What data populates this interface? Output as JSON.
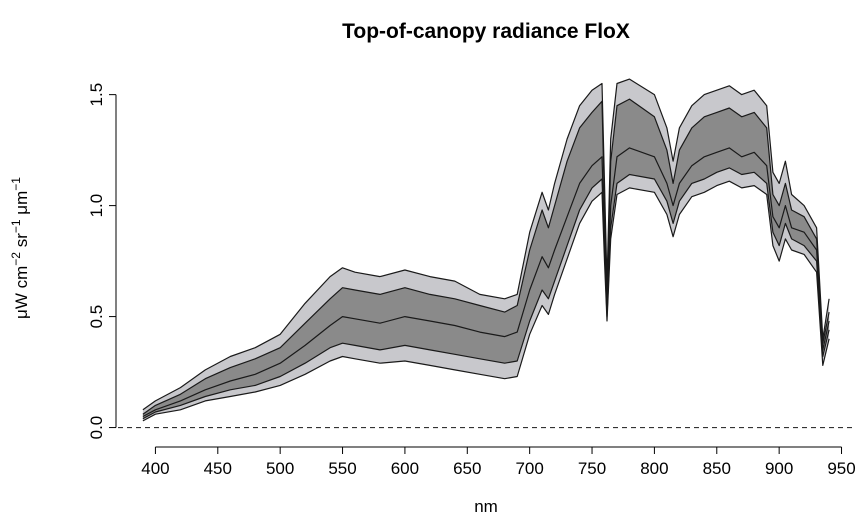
{
  "chart_data": {
    "type": "area",
    "title": "Top-of-canopy radiance FloX",
    "xlabel": "nm",
    "ylabel": {
      "text": "μW cm",
      "exp1": "−2",
      "mid": " sr",
      "exp2": "−1",
      "mid2": " μm",
      "exp3": "−1"
    },
    "xlim": [
      370,
      960
    ],
    "ylim": [
      -0.02,
      1.62
    ],
    "x_ticks": [
      400,
      450,
      500,
      550,
      600,
      650,
      700,
      750,
      800,
      850,
      900,
      950
    ],
    "y_ticks": [
      0.0,
      0.5,
      1.0,
      1.5
    ],
    "y_tick_labels": [
      "0.0",
      "0.5",
      "1.0",
      "1.5"
    ],
    "reference_line": {
      "y": 0,
      "style": "dashed"
    },
    "x": [
      390,
      400,
      420,
      440,
      460,
      480,
      500,
      520,
      540,
      550,
      560,
      580,
      600,
      620,
      640,
      660,
      680,
      690,
      700,
      710,
      715,
      720,
      730,
      740,
      750,
      758,
      760,
      762,
      765,
      770,
      780,
      800,
      810,
      815,
      820,
      830,
      840,
      850,
      860,
      870,
      880,
      890,
      895,
      900,
      905,
      910,
      920,
      930,
      935,
      940
    ],
    "series": [
      {
        "role": "outer_upper",
        "values": [
          0.08,
          0.12,
          0.18,
          0.26,
          0.32,
          0.36,
          0.42,
          0.56,
          0.68,
          0.72,
          0.7,
          0.68,
          0.71,
          0.68,
          0.66,
          0.6,
          0.58,
          0.6,
          0.88,
          1.06,
          0.98,
          1.1,
          1.3,
          1.45,
          1.52,
          1.55,
          1.1,
          0.65,
          1.3,
          1.55,
          1.57,
          1.5,
          1.35,
          1.2,
          1.35,
          1.45,
          1.5,
          1.52,
          1.54,
          1.5,
          1.52,
          1.45,
          1.15,
          1.1,
          1.2,
          1.05,
          1.0,
          0.9,
          0.4,
          0.58
        ]
      },
      {
        "role": "mean_plus_sd",
        "values": [
          0.06,
          0.1,
          0.15,
          0.22,
          0.27,
          0.31,
          0.36,
          0.47,
          0.58,
          0.63,
          0.62,
          0.6,
          0.63,
          0.6,
          0.58,
          0.55,
          0.52,
          0.55,
          0.8,
          0.98,
          0.9,
          1.0,
          1.2,
          1.35,
          1.42,
          1.47,
          1.0,
          0.58,
          1.2,
          1.45,
          1.48,
          1.4,
          1.25,
          1.1,
          1.25,
          1.35,
          1.4,
          1.42,
          1.44,
          1.4,
          1.42,
          1.35,
          1.05,
          1.0,
          1.1,
          0.98,
          0.95,
          0.85,
          0.38,
          0.52
        ]
      },
      {
        "role": "mean",
        "values": [
          0.05,
          0.08,
          0.12,
          0.17,
          0.21,
          0.24,
          0.29,
          0.37,
          0.46,
          0.5,
          0.49,
          0.47,
          0.5,
          0.48,
          0.46,
          0.43,
          0.41,
          0.43,
          0.62,
          0.77,
          0.72,
          0.8,
          0.95,
          1.1,
          1.18,
          1.22,
          0.85,
          0.52,
          1.0,
          1.22,
          1.26,
          1.22,
          1.1,
          1.0,
          1.1,
          1.18,
          1.22,
          1.24,
          1.26,
          1.22,
          1.24,
          1.18,
          0.95,
          0.9,
          1.0,
          0.9,
          0.88,
          0.8,
          0.35,
          0.48
        ]
      },
      {
        "role": "mean_minus_sd",
        "values": [
          0.04,
          0.07,
          0.1,
          0.14,
          0.17,
          0.19,
          0.23,
          0.29,
          0.36,
          0.38,
          0.37,
          0.35,
          0.37,
          0.35,
          0.33,
          0.31,
          0.29,
          0.3,
          0.48,
          0.62,
          0.58,
          0.66,
          0.82,
          0.98,
          1.08,
          1.12,
          0.8,
          0.5,
          0.9,
          1.1,
          1.14,
          1.12,
          1.02,
          0.92,
          1.02,
          1.1,
          1.12,
          1.15,
          1.17,
          1.14,
          1.15,
          1.1,
          0.88,
          0.82,
          0.92,
          0.85,
          0.82,
          0.75,
          0.32,
          0.44
        ]
      },
      {
        "role": "outer_lower",
        "values": [
          0.03,
          0.06,
          0.08,
          0.12,
          0.14,
          0.16,
          0.19,
          0.24,
          0.3,
          0.32,
          0.31,
          0.29,
          0.3,
          0.28,
          0.26,
          0.24,
          0.22,
          0.23,
          0.42,
          0.55,
          0.51,
          0.6,
          0.76,
          0.92,
          1.02,
          1.06,
          0.75,
          0.48,
          0.85,
          1.05,
          1.08,
          1.06,
          0.96,
          0.86,
          0.96,
          1.04,
          1.06,
          1.09,
          1.11,
          1.08,
          1.09,
          1.05,
          0.82,
          0.75,
          0.85,
          0.8,
          0.78,
          0.7,
          0.28,
          0.4
        ]
      }
    ],
    "band_colors": {
      "outer": "#c8c8cc",
      "inner": "#8a8a8a",
      "line": "#1a1a1a"
    },
    "grid": false,
    "legend": "none"
  }
}
